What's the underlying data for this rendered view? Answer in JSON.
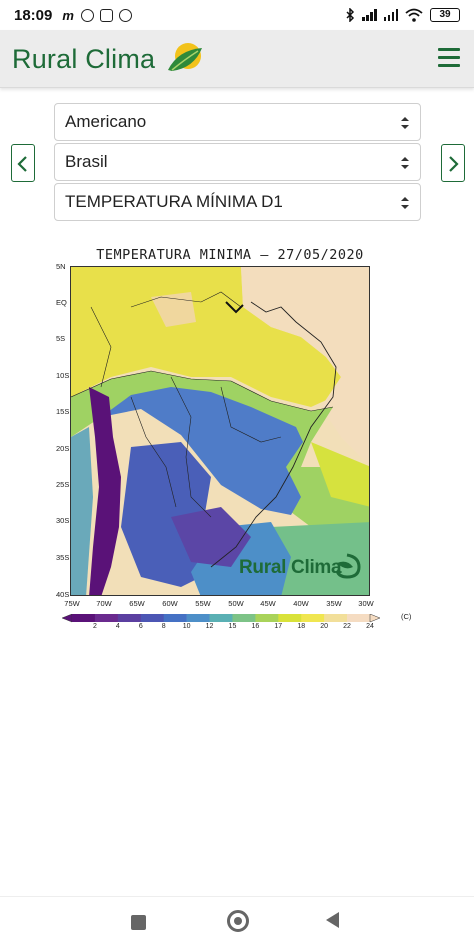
{
  "status_bar": {
    "time": "18:09",
    "battery": "39"
  },
  "app": {
    "brand": "Rural Clima",
    "brand_color": "#1e6b38"
  },
  "selectors": {
    "model": "Americano",
    "region": "Brasil",
    "variable": "TEMPERATURA MÍNIMA D1"
  },
  "map": {
    "title": "TEMPERATURA MINIMA — 27/05/2020",
    "latitude_labels": [
      "5N",
      "EQ",
      "5S",
      "10S",
      "15S",
      "20S",
      "25S",
      "30S",
      "35S",
      "40S"
    ],
    "longitude_labels": [
      "75W",
      "70W",
      "65W",
      "60W",
      "55W",
      "50W",
      "45W",
      "40W",
      "35W",
      "30W"
    ],
    "watermark": "Rural Clima",
    "colorbar": {
      "labels": [
        "2",
        "4",
        "6",
        "8",
        "10",
        "12",
        "15",
        "16",
        "17",
        "18",
        "20",
        "22",
        "24"
      ],
      "unit": "(C)",
      "colors": [
        "#5a1278",
        "#6a2a8e",
        "#5b3fa0",
        "#4c56b4",
        "#4571c4",
        "#4d8fc8",
        "#5ab0b4",
        "#7dc387",
        "#a9d35a",
        "#d9e23a",
        "#f0e650",
        "#f2df9a",
        "#f5dcc2"
      ]
    }
  },
  "icons": {
    "menu": "hamburger-menu-icon",
    "prev": "chevron-left-icon",
    "next": "chevron-right-icon",
    "caret": "select-caret-icon"
  }
}
